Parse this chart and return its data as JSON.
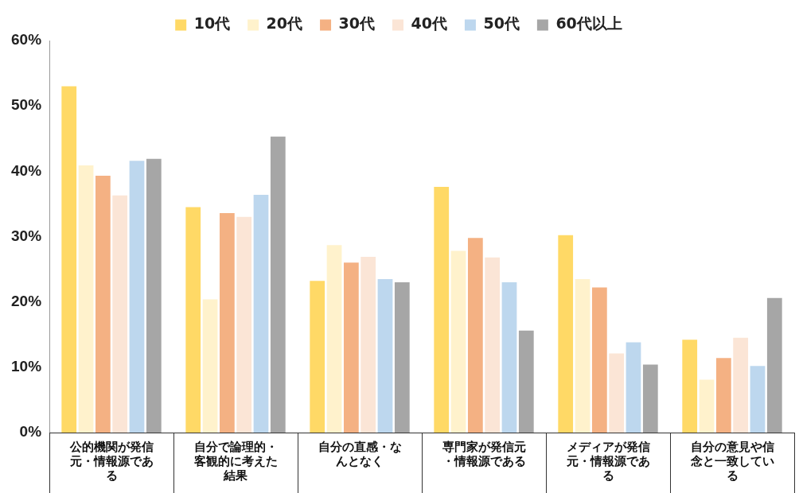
{
  "chart_data": {
    "type": "bar",
    "categories": [
      "公的機関が発信元・情報源である",
      "自分で論理的・客観的に考えた結果",
      "自分の直感・なんとなく",
      "専門家が発信元・情報源である",
      "メディアが発信元・情報源である",
      "自分の意見や信念と一致している"
    ],
    "series": [
      {
        "name": "10代",
        "color": "#ffd966",
        "values": [
          53,
          34.5,
          23.2,
          37.6,
          30.2,
          14.2
        ]
      },
      {
        "name": "20代",
        "color": "#fff2cc",
        "values": [
          40.9,
          20.4,
          28.7,
          27.8,
          23.5,
          8.1
        ]
      },
      {
        "name": "30代",
        "color": "#f4b183",
        "values": [
          39.3,
          33.6,
          26,
          29.8,
          22.2,
          11.4
        ]
      },
      {
        "name": "40代",
        "color": "#fbe5d6",
        "values": [
          36.3,
          33,
          26.9,
          26.8,
          12.1,
          14.5
        ]
      },
      {
        "name": "50代",
        "color": "#bdd7ee",
        "values": [
          41.6,
          36.4,
          23.5,
          23,
          13.8,
          10.2
        ]
      },
      {
        "name": "60代以上",
        "color": "#a6a6a6",
        "values": [
          41.9,
          45.3,
          23,
          15.6,
          10.4,
          20.6
        ]
      }
    ],
    "ylim": [
      0,
      60
    ],
    "yticks": [
      {
        "value": 0,
        "label": "0%"
      },
      {
        "value": 10,
        "label": "10%"
      },
      {
        "value": 20,
        "label": "20%"
      },
      {
        "value": 30,
        "label": "30%"
      },
      {
        "value": 40,
        "label": "40%"
      },
      {
        "value": 50,
        "label": "50%"
      },
      {
        "value": 60,
        "label": "60%"
      }
    ],
    "grid": false,
    "legend": "top"
  }
}
